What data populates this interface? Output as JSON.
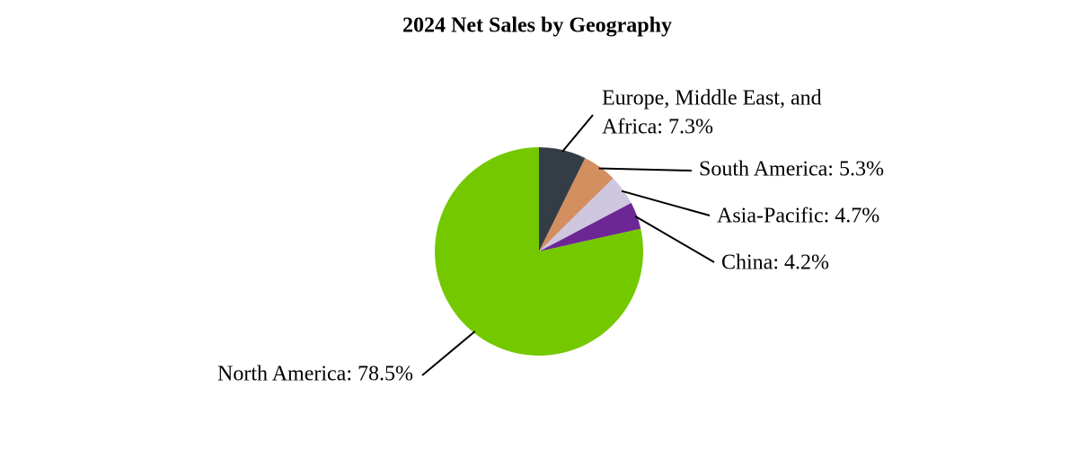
{
  "chart_data": {
    "type": "pie",
    "title": "2024 Net Sales by Geography",
    "labels": [
      [
        "Europe, Middle East, and",
        "Africa: 7.3%"
      ],
      [
        "South America: 5.3%"
      ],
      [
        "Asia-Pacific: 4.7%"
      ],
      [
        "China: 4.2%"
      ],
      [
        "North America: 78.5%"
      ]
    ],
    "values": [
      7.3,
      5.3,
      4.7,
      4.2,
      78.5
    ],
    "colors": [
      "#343d46",
      "#d38f60",
      "#cfc6df",
      "#6d2794",
      "#74c800"
    ]
  }
}
